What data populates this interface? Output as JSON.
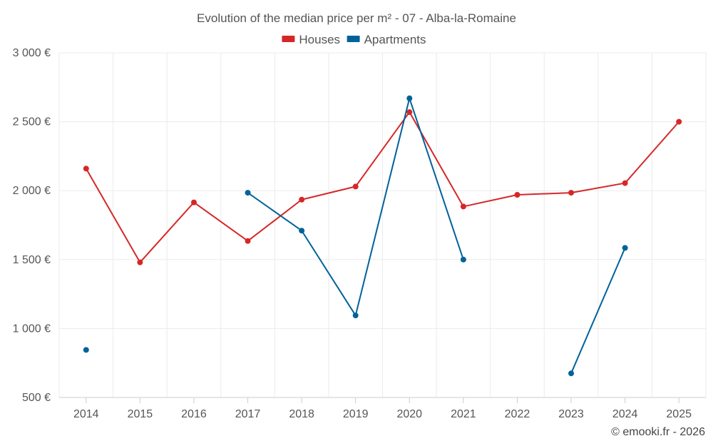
{
  "chart_data": {
    "type": "line",
    "title": "Evolution of the median price per m² - 07 - Alba-la-Romaine",
    "categories": [
      "2014",
      "2015",
      "2016",
      "2017",
      "2018",
      "2019",
      "2020",
      "2021",
      "2022",
      "2023",
      "2024",
      "2025"
    ],
    "series": [
      {
        "name": "Houses",
        "color": "#d62728",
        "values": [
          2160,
          1480,
          1915,
          1635,
          1935,
          2030,
          2570,
          1885,
          1970,
          1985,
          2055,
          2500
        ]
      },
      {
        "name": "Apartments",
        "color": "#00629a",
        "values": [
          845,
          null,
          null,
          1985,
          1710,
          1095,
          2670,
          1500,
          null,
          675,
          1585,
          null
        ]
      }
    ],
    "ylim": [
      500,
      3000
    ],
    "yticks": [
      500,
      1000,
      1500,
      2000,
      2500,
      3000
    ],
    "ytick_labels": [
      "500 €",
      "1 000 €",
      "1 500 €",
      "2 000 €",
      "2 500 €",
      "3 000 €"
    ],
    "xlabel": "",
    "ylabel": "",
    "grid": true,
    "legend_position": "top-center"
  },
  "credit": "© emooki.fr - 2026"
}
